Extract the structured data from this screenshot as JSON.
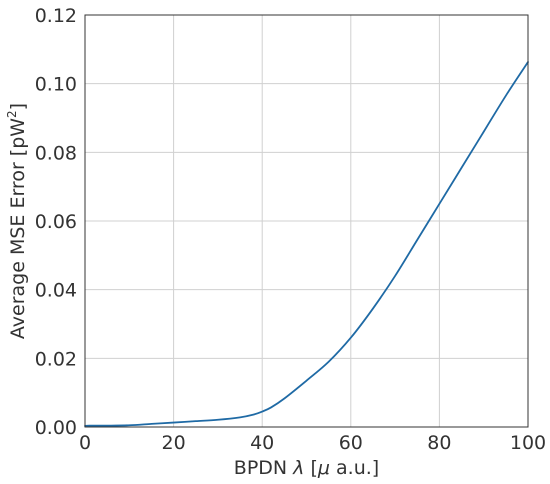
{
  "chart_data": {
    "type": "line",
    "xlabel": {
      "prefix": "BPDN ",
      "lambda": "λ",
      "bracket_open": " [",
      "mu": "μ",
      "suffix": " a.u.]"
    },
    "ylabel": {
      "main": "Average MSE Error [pW",
      "sup": "2",
      "end": "]"
    },
    "xlim": [
      0,
      100
    ],
    "ylim": [
      0,
      0.12
    ],
    "x_ticks": [
      0,
      20,
      40,
      60,
      80,
      100
    ],
    "x_tick_labels": [
      "0",
      "20",
      "40",
      "60",
      "80",
      "100"
    ],
    "y_ticks": [
      0,
      0.02,
      0.04,
      0.06,
      0.08,
      0.1,
      0.12
    ],
    "y_tick_labels": [
      "0.00",
      "0.02",
      "0.04",
      "0.06",
      "0.08",
      "0.10",
      "0.12"
    ],
    "grid": true,
    "series": [
      {
        "color": "#1f6aa5",
        "x": [
          0,
          1,
          5,
          10,
          15,
          20,
          25,
          30,
          35,
          38,
          40,
          42,
          45,
          50,
          55,
          60,
          65,
          70,
          75,
          80,
          85,
          90,
          95,
          100
        ],
        "y": [
          0.0003,
          0.0004,
          0.0004,
          0.0005,
          0.0009,
          0.0013,
          0.0017,
          0.0021,
          0.0028,
          0.0036,
          0.0045,
          0.0057,
          0.0083,
          0.0135,
          0.019,
          0.026,
          0.0345,
          0.044,
          0.0545,
          0.065,
          0.0755,
          0.086,
          0.0965,
          0.1063
        ]
      }
    ]
  }
}
